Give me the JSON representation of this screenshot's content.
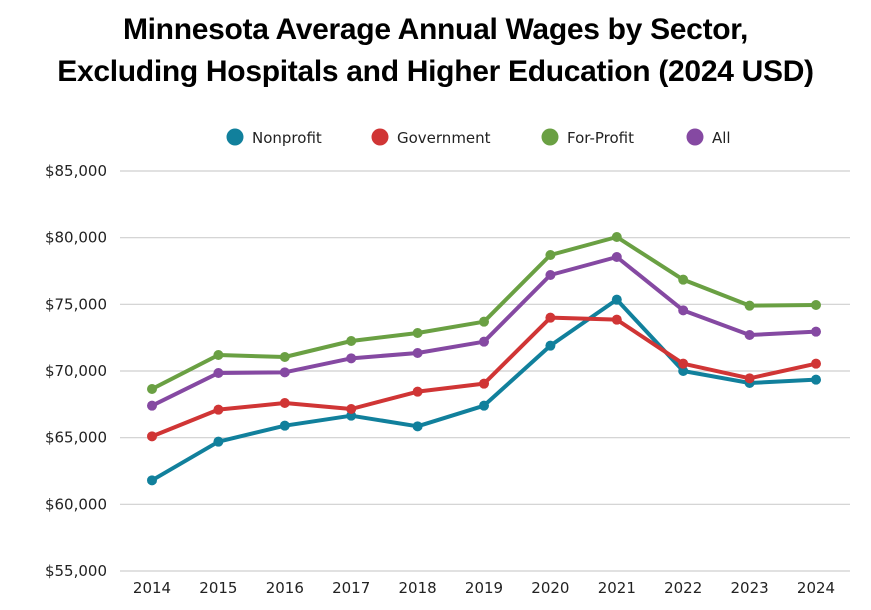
{
  "chart_data": {
    "type": "line",
    "title": "Minnesota Average Annual Wages by Sector,",
    "subtitle": "Excluding Hospitals and Higher Education (2024 USD)",
    "xlabel": "",
    "ylabel": "",
    "x": [
      "2014",
      "2015",
      "2016",
      "2017",
      "2018",
      "2019",
      "2020",
      "2021",
      "2022",
      "2023",
      "2024"
    ],
    "ylim": [
      55000,
      85000
    ],
    "yticks": [
      55000,
      60000,
      65000,
      70000,
      75000,
      80000,
      85000
    ],
    "ytick_labels": [
      "$55,000",
      "$60,000",
      "$65,000",
      "$70,000",
      "$75,000",
      "$80,000",
      "$85,000"
    ],
    "grid": true,
    "legend_position": "top-center",
    "series": [
      {
        "name": "Nonprofit",
        "color": "#11809c",
        "values": [
          61800,
          64700,
          65900,
          66650,
          65850,
          67400,
          71900,
          75350,
          70000,
          69100,
          69350
        ]
      },
      {
        "name": "Government",
        "color": "#d03535",
        "values": [
          65100,
          67100,
          67600,
          67150,
          68450,
          69050,
          74000,
          73850,
          70550,
          69450,
          70550
        ]
      },
      {
        "name": "For-Profit",
        "color": "#6aa043",
        "values": [
          68650,
          71200,
          71050,
          72250,
          72850,
          73700,
          78700,
          80050,
          76850,
          74900,
          74950
        ]
      },
      {
        "name": "All",
        "color": "#8549a2",
        "values": [
          67400,
          69850,
          69900,
          70950,
          71350,
          72200,
          77200,
          78550,
          74550,
          72700,
          72950
        ]
      }
    ]
  }
}
